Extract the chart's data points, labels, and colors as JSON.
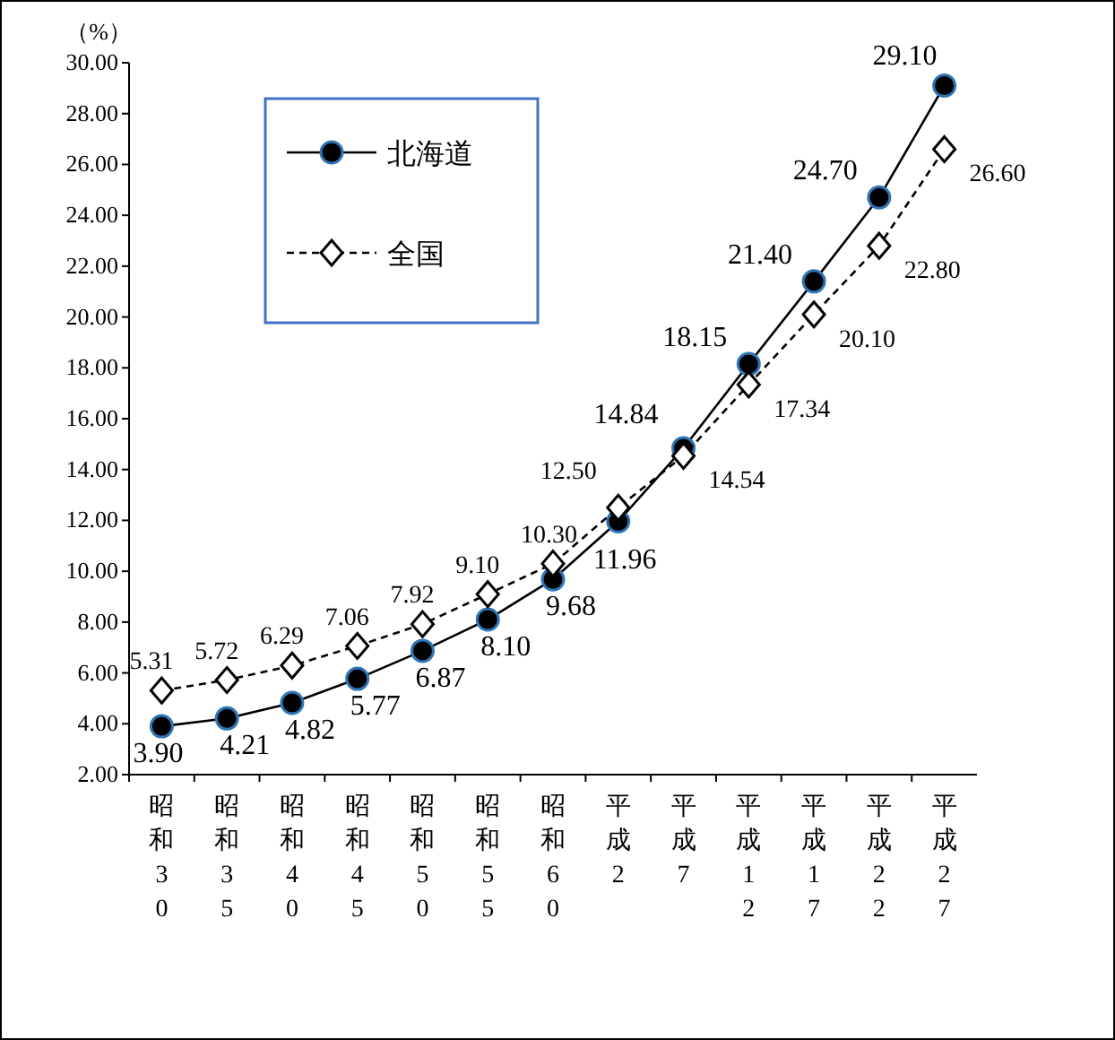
{
  "chart_data": {
    "type": "line",
    "ylabel": "（%）",
    "categories": [
      "昭和30",
      "昭和35",
      "昭和40",
      "昭和45",
      "昭和50",
      "昭和55",
      "昭和60",
      "平成2",
      "平成7",
      "平成12",
      "平成17",
      "平成22",
      "平成27"
    ],
    "series": [
      {
        "name": "北海道",
        "color": "#000000",
        "marker": "circle",
        "line_style": "solid",
        "values": [
          3.9,
          4.21,
          4.82,
          5.77,
          6.87,
          8.1,
          9.68,
          11.96,
          14.84,
          18.15,
          21.4,
          24.7,
          29.1
        ],
        "value_labels": [
          "3.90",
          "4.21",
          "4.82",
          "5.77",
          "6.87",
          "8.10",
          "9.68",
          "11.96",
          "14.84",
          "18.15",
          "21.40",
          "24.70",
          "29.10"
        ]
      },
      {
        "name": "全国",
        "color": "#000000",
        "marker": "diamond",
        "line_style": "dashed",
        "values": [
          5.31,
          5.72,
          6.29,
          7.06,
          7.92,
          9.1,
          10.3,
          12.5,
          14.54,
          17.34,
          20.1,
          22.8,
          26.6
        ],
        "value_labels": [
          "5.31",
          "5.72",
          "6.29",
          "7.06",
          "7.92",
          "9.10",
          "10.30",
          "12.50",
          "14.54",
          "17.34",
          "20.10",
          "22.80",
          "26.60"
        ]
      }
    ],
    "ylim": [
      2,
      30
    ],
    "yticks": [
      {
        "value": 2,
        "label": "2.00"
      },
      {
        "value": 4,
        "label": "4.00"
      },
      {
        "value": 6,
        "label": "6.00"
      },
      {
        "value": 8,
        "label": "8.00"
      },
      {
        "value": 10,
        "label": "10.00"
      },
      {
        "value": 12,
        "label": "12.00"
      },
      {
        "value": 14,
        "label": "14.00"
      },
      {
        "value": 16,
        "label": "16.00"
      },
      {
        "value": 18,
        "label": "18.00"
      },
      {
        "value": 20,
        "label": "20.00"
      },
      {
        "value": 22,
        "label": "22.00"
      },
      {
        "value": 24,
        "label": "24.00"
      },
      {
        "value": 26,
        "label": "26.00"
      },
      {
        "value": 28,
        "label": "28.00"
      },
      {
        "value": 30,
        "label": "30.00"
      }
    ],
    "grid": false,
    "legend": "top left"
  }
}
